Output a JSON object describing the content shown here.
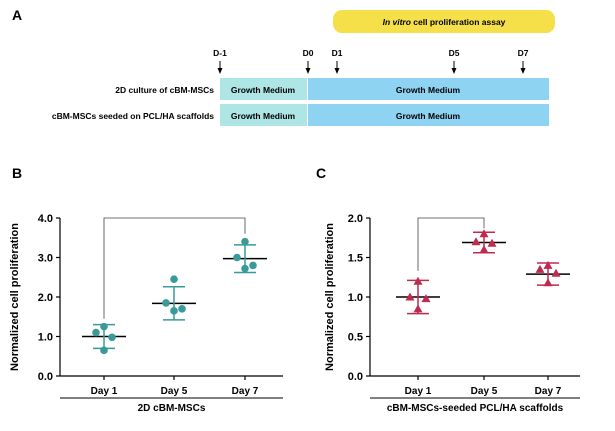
{
  "panels": {
    "a": {
      "letter": "A",
      "assay_italic": "In vitro",
      "assay_rest": " cell proliferation assay",
      "timepoints": [
        "D-1",
        "D0",
        "D1",
        "D5",
        "D7"
      ],
      "rows": [
        {
          "label": "2D culture of cBM-MSCs",
          "seg1": "Growth Medium",
          "seg2": "Growth Medium"
        },
        {
          "label": "cBM-MSCs seeded on PCL/HA scaffolds",
          "seg1": "Growth Medium",
          "seg2": "Growth Medium"
        }
      ],
      "colors": {
        "pre": "#aee6e6",
        "main": "#8fd3f2",
        "assay": "#f5e04a"
      }
    },
    "b": {
      "letter": "B"
    },
    "c": {
      "letter": "C"
    }
  },
  "chart_data": [
    {
      "type": "scatter",
      "categories": [
        "Day 1",
        "Day 5",
        "Day 7"
      ],
      "ylabel": "Normalized cell proliferation",
      "xlabel": "2D cBM-MSCs",
      "ylim": [
        0,
        4
      ],
      "yticks": [
        "0.0",
        "1.0",
        "2.0",
        "3.0",
        "4.0"
      ],
      "marker": "circle",
      "color": "#3a9a9a",
      "means": [
        1.0,
        1.84,
        2.97
      ],
      "sd": [
        0.3,
        0.42,
        0.35
      ],
      "points": [
        [
          1.25,
          1.1,
          0.98,
          0.65
        ],
        [
          2.45,
          1.85,
          1.7,
          1.65
        ],
        [
          3.4,
          3.0,
          2.8,
          2.72
        ]
      ],
      "bracket": {
        "from": 0,
        "to": 2,
        "y": 4.0
      }
    },
    {
      "type": "scatter",
      "categories": [
        "Day 1",
        "Day 5",
        "Day 7"
      ],
      "ylabel": "Normalized cell proliferation",
      "xlabel": "cBM-MSCs-seeded PCL/HA scaffolds",
      "ylim": [
        0,
        2
      ],
      "yticks": [
        "0.0",
        "0.5",
        "1.0",
        "1.5",
        "2.0"
      ],
      "marker": "triangle",
      "color": "#c02a4e",
      "means": [
        1.0,
        1.69,
        1.29
      ],
      "sd": [
        0.21,
        0.13,
        0.14
      ],
      "points": [
        [
          1.2,
          1.0,
          0.98,
          0.85
        ],
        [
          1.8,
          1.7,
          1.68,
          1.6
        ],
        [
          1.4,
          1.35,
          1.3,
          1.18
        ]
      ],
      "bracket": {
        "from": 0,
        "to": 1,
        "y": 2.0
      }
    }
  ]
}
